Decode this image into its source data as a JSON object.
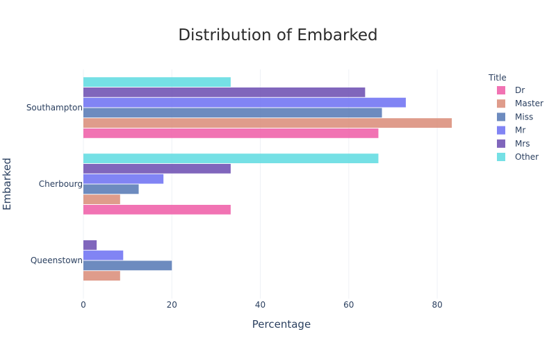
{
  "chart_data": {
    "type": "bar",
    "orientation": "horizontal",
    "title": "Distribution of Embarked",
    "xlabel": "Percentage",
    "ylabel": "Embarked",
    "xlim": [
      0,
      88
    ],
    "xticks": [
      0,
      20,
      40,
      60,
      80
    ],
    "grid": true,
    "legend_title": "Title",
    "legend_position": "top-right",
    "categories": [
      "Southampton",
      "Cherbourg",
      "Queenstown"
    ],
    "series": [
      {
        "name": "Dr",
        "color": "#ef5aa6",
        "values": [
          66.7,
          33.3,
          null
        ]
      },
      {
        "name": "Master",
        "color": "#d98b77",
        "values": [
          83.3,
          8.3,
          8.3
        ]
      },
      {
        "name": "Miss",
        "color": "#5377b4",
        "values": [
          67.5,
          12.5,
          20.0
        ]
      },
      {
        "name": "Mr",
        "color": "#6b6ff2",
        "values": [
          72.9,
          18.1,
          9.0
        ]
      },
      {
        "name": "Mrs",
        "color": "#6a4bb0",
        "values": [
          63.7,
          33.3,
          3.0
        ]
      },
      {
        "name": "Other",
        "color": "#5ddbe0",
        "values": [
          33.3,
          66.7,
          null
        ]
      }
    ]
  }
}
